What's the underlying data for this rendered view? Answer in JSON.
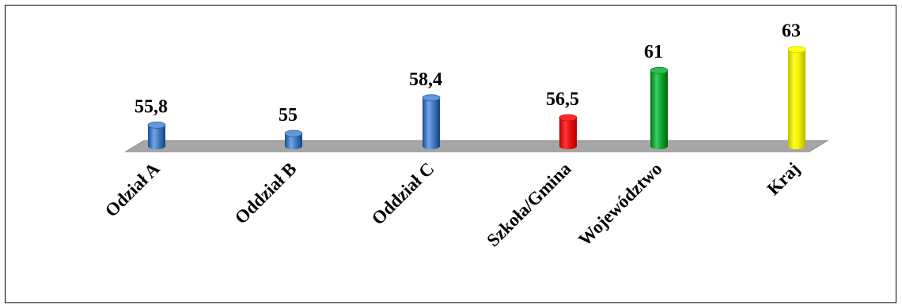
{
  "chart_data": {
    "type": "bar",
    "categories": [
      "Odział A",
      "Oddział B",
      "Oddział C",
      "Szkoła/Gmina",
      "Województwo",
      "Kraj"
    ],
    "values": [
      55.8,
      55,
      58.4,
      56.5,
      61,
      63
    ],
    "value_labels": [
      "55,8",
      "55",
      "58,4",
      "56,5",
      "61",
      "63"
    ],
    "colors": [
      "#4a7ec3",
      "#4a7ec3",
      "#4a7ec3",
      "#ee1111",
      "#14a53c",
      "#f2f200"
    ],
    "ylim": [
      53.8,
      63
    ],
    "grid": false,
    "legend": "none",
    "floor_color": "#a6a6a6"
  }
}
